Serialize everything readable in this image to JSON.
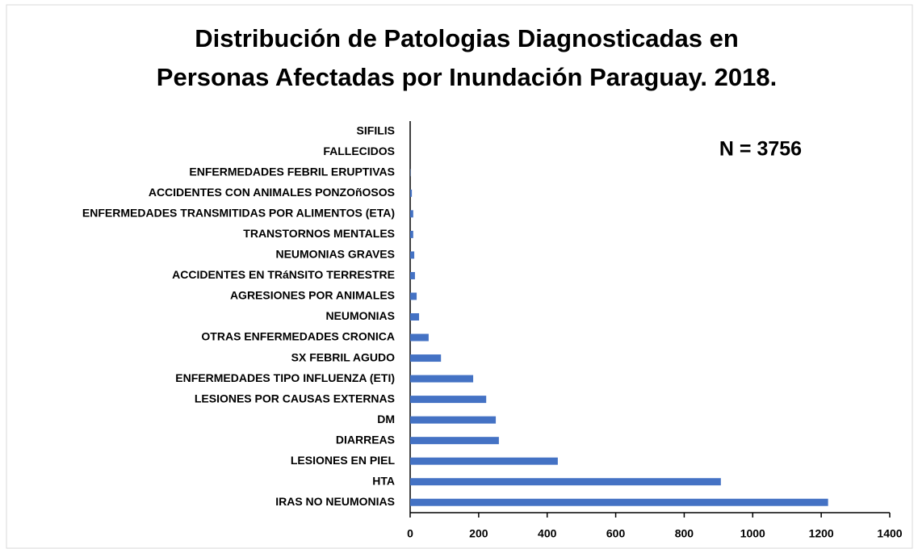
{
  "chart_data": {
    "type": "barh",
    "title": [
      "Distribución de Patologias Diagnosticadas en",
      "Personas Afectadas por Inundación Paraguay. 2018."
    ],
    "annotation": "N = 3756",
    "categories": [
      "SIFILIS",
      "FALLECIDOS",
      "ENFERMEDADES FEBRIL ERUPTIVAS",
      "ACCIDENTES CON ANIMALES PONZOñOSOS",
      "ENFERMEDADES TRANSMITIDAS POR ALIMENTOS (ETA)",
      "TRANSTORNOS MENTALES",
      "NEUMONIAS GRAVES",
      "ACCIDENTES EN TRáNSITO TERRESTRE",
      "AGRESIONES POR ANIMALES",
      "NEUMONIAS",
      "OTRAS ENFERMEDADES CRONICA",
      "SX FEBRIL AGUDO",
      "ENFERMEDADES TIPO INFLUENZA (ETI)",
      "LESIONES POR CAUSAS EXTERNAS",
      "DM",
      "DIARREAS",
      "LESIONES EN PIEL",
      "HTA",
      "IRAS NO NEUMONIAS"
    ],
    "values": [
      0,
      0,
      1,
      5,
      9,
      9,
      12,
      14,
      19,
      26,
      54,
      90,
      184,
      222,
      250,
      259,
      431,
      907,
      1220
    ],
    "color": "#4472c4",
    "xlim": [
      0,
      1400
    ],
    "xticks": [
      0,
      200,
      400,
      600,
      800,
      1000,
      1200,
      1400
    ],
    "grid": false
  }
}
